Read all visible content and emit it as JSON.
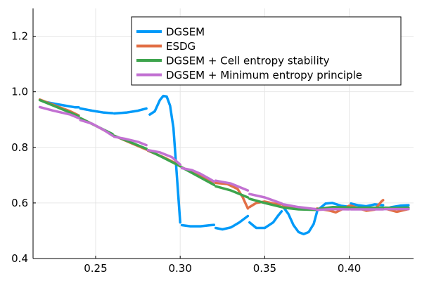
{
  "chart_data": {
    "type": "line",
    "title": "",
    "xlabel": "",
    "ylabel": "",
    "xlim": [
      0.213,
      0.438
    ],
    "ylim": [
      0.4,
      1.3
    ],
    "grid": true,
    "legend_position": "top-right",
    "x_ticks": [
      0.25,
      0.3,
      0.35,
      0.4
    ],
    "x_tick_labels": [
      "0.25",
      "0.30",
      "0.35",
      "0.40"
    ],
    "y_ticks": [
      0.4,
      0.6,
      0.8,
      1.0,
      1.2
    ],
    "y_tick_labels": [
      "0.4",
      "0.6",
      "0.8",
      "1.0",
      "1.2"
    ],
    "series": [
      {
        "name": "DGSEM",
        "color": "#009af9",
        "segments": [
          [
            [
              0.219,
              0.965
            ],
            [
              0.225,
              0.958
            ],
            [
              0.232,
              0.95
            ],
            [
              0.238,
              0.944
            ],
            [
              0.24,
              0.944
            ]
          ],
          [
            [
              0.241,
              0.94
            ],
            [
              0.248,
              0.932
            ],
            [
              0.255,
              0.925
            ],
            [
              0.26,
              0.923
            ]
          ],
          [
            [
              0.261,
              0.922
            ],
            [
              0.268,
              0.925
            ],
            [
              0.275,
              0.932
            ],
            [
              0.28,
              0.94
            ]
          ],
          [
            [
              0.282,
              0.918
            ],
            [
              0.285,
              0.93
            ],
            [
              0.288,
              0.97
            ],
            [
              0.29,
              0.985
            ],
            [
              0.292,
              0.983
            ],
            [
              0.294,
              0.95
            ],
            [
              0.296,
              0.87
            ],
            [
              0.298,
              0.7
            ],
            [
              0.3,
              0.53
            ]
          ],
          [
            [
              0.301,
              0.52
            ],
            [
              0.306,
              0.516
            ],
            [
              0.312,
              0.516
            ],
            [
              0.318,
              0.52
            ],
            [
              0.32,
              0.521
            ]
          ],
          [
            [
              0.321,
              0.51
            ],
            [
              0.325,
              0.505
            ],
            [
              0.33,
              0.512
            ],
            [
              0.335,
              0.53
            ],
            [
              0.34,
              0.553
            ]
          ],
          [
            [
              0.341,
              0.53
            ],
            [
              0.345,
              0.51
            ],
            [
              0.35,
              0.51
            ],
            [
              0.355,
              0.53
            ],
            [
              0.358,
              0.555
            ],
            [
              0.36,
              0.57
            ]
          ],
          [
            [
              0.361,
              0.585
            ],
            [
              0.364,
              0.56
            ],
            [
              0.367,
              0.52
            ],
            [
              0.37,
              0.495
            ],
            [
              0.373,
              0.488
            ],
            [
              0.376,
              0.495
            ],
            [
              0.379,
              0.525
            ],
            [
              0.381,
              0.57
            ]
          ],
          [
            [
              0.382,
              0.578
            ],
            [
              0.386,
              0.598
            ],
            [
              0.39,
              0.6
            ],
            [
              0.395,
              0.59
            ],
            [
              0.4,
              0.586
            ]
          ],
          [
            [
              0.401,
              0.598
            ],
            [
              0.405,
              0.592
            ],
            [
              0.41,
              0.588
            ],
            [
              0.415,
              0.595
            ],
            [
              0.42,
              0.592
            ]
          ],
          [
            [
              0.421,
              0.578
            ],
            [
              0.425,
              0.585
            ],
            [
              0.43,
              0.59
            ],
            [
              0.435,
              0.592
            ]
          ]
        ]
      },
      {
        "name": "ESDG",
        "color": "#e26f46",
        "segments": [
          [
            [
              0.217,
              0.972
            ],
            [
              0.225,
              0.953
            ],
            [
              0.235,
              0.93
            ],
            [
              0.24,
              0.915
            ]
          ],
          [
            [
              0.241,
              0.905
            ],
            [
              0.25,
              0.878
            ],
            [
              0.26,
              0.845
            ]
          ],
          [
            [
              0.261,
              0.842
            ],
            [
              0.27,
              0.818
            ],
            [
              0.28,
              0.792
            ]
          ],
          [
            [
              0.281,
              0.788
            ],
            [
              0.29,
              0.765
            ],
            [
              0.3,
              0.735
            ]
          ],
          [
            [
              0.301,
              0.728
            ],
            [
              0.31,
              0.703
            ],
            [
              0.32,
              0.675
            ]
          ],
          [
            [
              0.321,
              0.672
            ],
            [
              0.328,
              0.668
            ],
            [
              0.334,
              0.65
            ],
            [
              0.337,
              0.62
            ],
            [
              0.34,
              0.58
            ]
          ],
          [
            [
              0.341,
              0.585
            ],
            [
              0.345,
              0.6
            ],
            [
              0.35,
              0.605
            ],
            [
              0.355,
              0.598
            ],
            [
              0.36,
              0.595
            ]
          ],
          [
            [
              0.361,
              0.59
            ],
            [
              0.37,
              0.582
            ],
            [
              0.38,
              0.578
            ]
          ],
          [
            [
              0.381,
              0.58
            ],
            [
              0.388,
              0.573
            ],
            [
              0.392,
              0.566
            ],
            [
              0.396,
              0.578
            ],
            [
              0.4,
              0.59
            ]
          ],
          [
            [
              0.401,
              0.59
            ],
            [
              0.41,
              0.572
            ],
            [
              0.415,
              0.576
            ],
            [
              0.419,
              0.605
            ],
            [
              0.42,
              0.61
            ]
          ],
          [
            [
              0.421,
              0.58
            ],
            [
              0.428,
              0.568
            ],
            [
              0.435,
              0.578
            ]
          ]
        ]
      },
      {
        "name": "DGSEM + Cell entropy stability",
        "color": "#3da44d",
        "segments": [
          [
            [
              0.217,
              0.97
            ],
            [
              0.225,
              0.95
            ],
            [
              0.235,
              0.925
            ],
            [
              0.24,
              0.912
            ]
          ],
          [
            [
              0.241,
              0.905
            ],
            [
              0.25,
              0.878
            ],
            [
              0.26,
              0.848
            ]
          ],
          [
            [
              0.261,
              0.842
            ],
            [
              0.27,
              0.82
            ],
            [
              0.28,
              0.795
            ]
          ],
          [
            [
              0.281,
              0.79
            ],
            [
              0.29,
              0.763
            ],
            [
              0.3,
              0.732
            ]
          ],
          [
            [
              0.301,
              0.728
            ],
            [
              0.31,
              0.698
            ],
            [
              0.32,
              0.665
            ]
          ],
          [
            [
              0.321,
              0.66
            ],
            [
              0.33,
              0.645
            ],
            [
              0.34,
              0.62
            ]
          ],
          [
            [
              0.341,
              0.615
            ],
            [
              0.35,
              0.6
            ],
            [
              0.36,
              0.585
            ]
          ],
          [
            [
              0.361,
              0.583
            ],
            [
              0.37,
              0.577
            ],
            [
              0.38,
              0.575
            ]
          ],
          [
            [
              0.381,
              0.578
            ],
            [
              0.39,
              0.585
            ],
            [
              0.4,
              0.584
            ]
          ],
          [
            [
              0.401,
              0.583
            ],
            [
              0.41,
              0.583
            ],
            [
              0.42,
              0.583
            ]
          ],
          [
            [
              0.421,
              0.583
            ],
            [
              0.428,
              0.582
            ],
            [
              0.435,
              0.583
            ]
          ]
        ]
      },
      {
        "name": "DGSEM + Minimum entropy principle",
        "color": "#c271d2",
        "segments": [
          [
            [
              0.217,
              0.945
            ],
            [
              0.225,
              0.932
            ],
            [
              0.235,
              0.918
            ],
            [
              0.24,
              0.905
            ]
          ],
          [
            [
              0.241,
              0.898
            ],
            [
              0.248,
              0.885
            ],
            [
              0.255,
              0.862
            ],
            [
              0.26,
              0.842
            ]
          ],
          [
            [
              0.261,
              0.838
            ],
            [
              0.268,
              0.83
            ],
            [
              0.275,
              0.82
            ],
            [
              0.28,
              0.808
            ]
          ],
          [
            [
              0.281,
              0.79
            ],
            [
              0.288,
              0.782
            ],
            [
              0.295,
              0.765
            ],
            [
              0.3,
              0.738
            ]
          ],
          [
            [
              0.301,
              0.725
            ],
            [
              0.307,
              0.718
            ],
            [
              0.312,
              0.705
            ],
            [
              0.317,
              0.688
            ],
            [
              0.32,
              0.677
            ]
          ],
          [
            [
              0.321,
              0.68
            ],
            [
              0.33,
              0.67
            ],
            [
              0.34,
              0.645
            ]
          ],
          [
            [
              0.341,
              0.632
            ],
            [
              0.35,
              0.62
            ],
            [
              0.36,
              0.598
            ]
          ],
          [
            [
              0.361,
              0.595
            ],
            [
              0.37,
              0.585
            ],
            [
              0.38,
              0.578
            ]
          ],
          [
            [
              0.381,
              0.575
            ],
            [
              0.39,
              0.578
            ],
            [
              0.4,
              0.577
            ]
          ],
          [
            [
              0.401,
              0.577
            ],
            [
              0.41,
              0.577
            ],
            [
              0.42,
              0.577
            ]
          ],
          [
            [
              0.421,
              0.578
            ],
            [
              0.428,
              0.578
            ],
            [
              0.435,
              0.578
            ]
          ]
        ]
      }
    ]
  }
}
